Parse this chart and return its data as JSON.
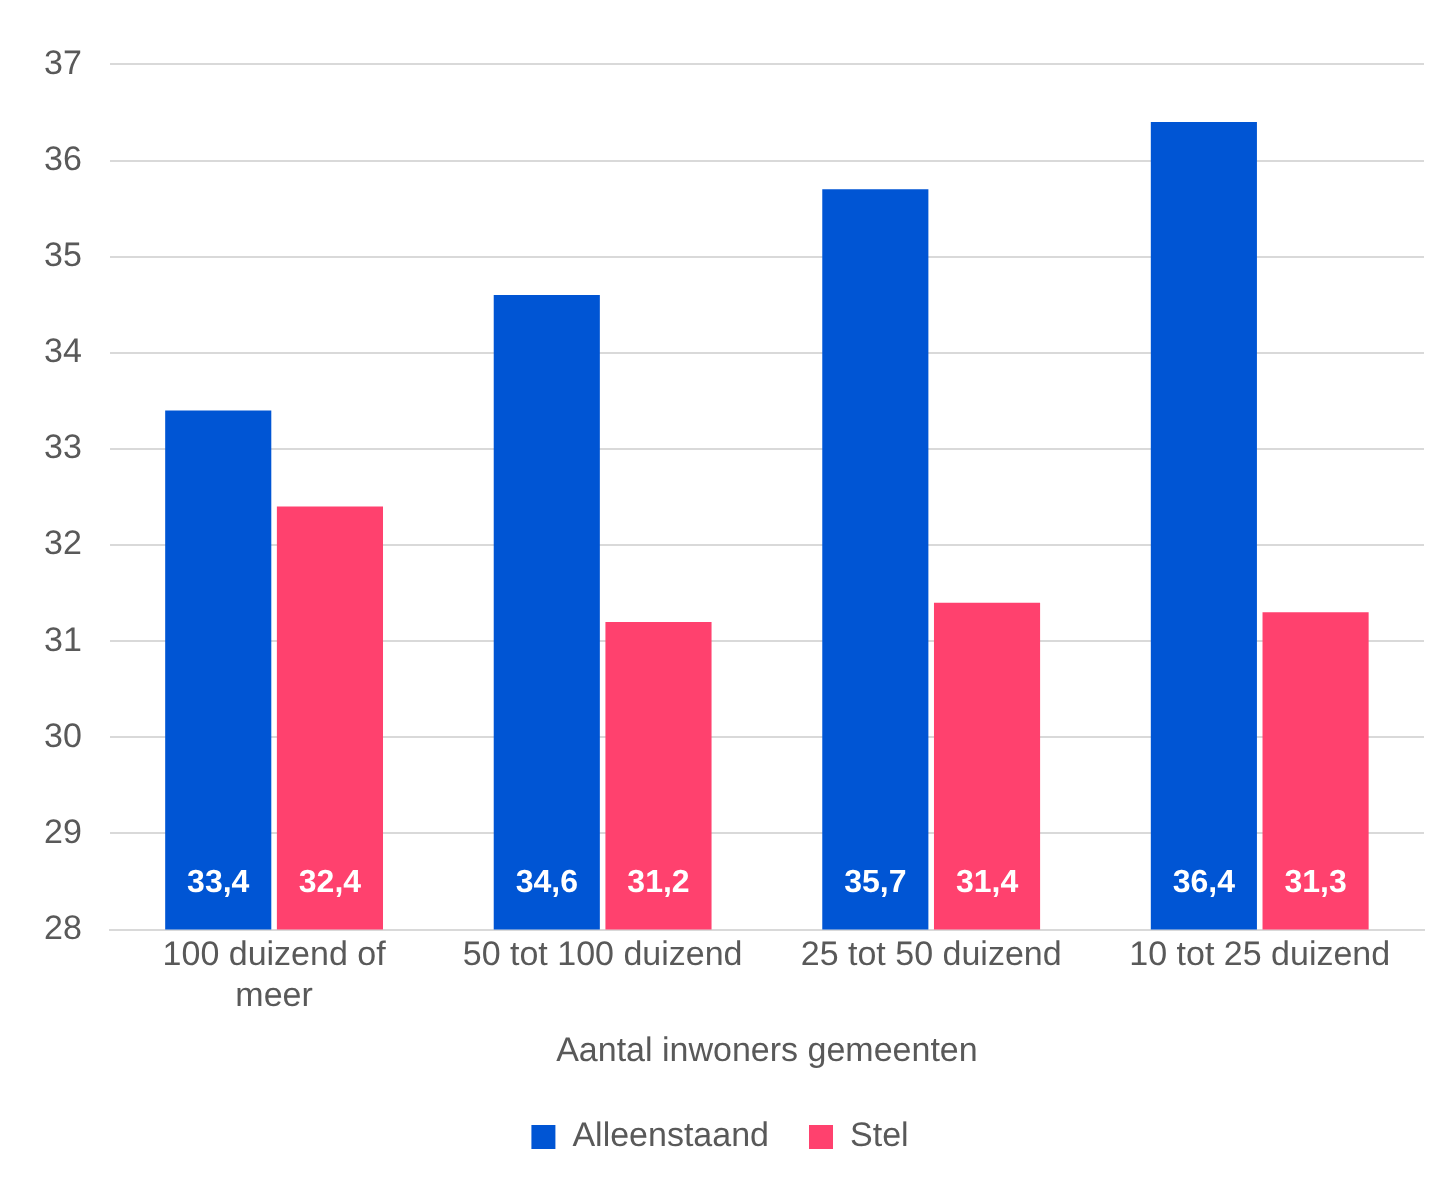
{
  "chart_data": {
    "type": "bar",
    "xlabel": "Aantal inwoners gemeenten",
    "categories": [
      "100 duizend of meer",
      "50 tot 100 duizend",
      "25 tot 50 duizend",
      "10 tot 25 duizend"
    ],
    "series": [
      {
        "name": "Alleenstaand",
        "color": "#0055d4",
        "values": [
          33.4,
          34.6,
          35.7,
          36.4
        ],
        "value_labels": [
          "33,4",
          "34,6",
          "35,7",
          "36,4"
        ]
      },
      {
        "name": "Stel",
        "color": "#ff416e",
        "values": [
          32.4,
          31.2,
          31.4,
          31.3
        ],
        "value_labels": [
          "32,4",
          "31,2",
          "31,4",
          "31,3"
        ]
      }
    ],
    "ylim": [
      28,
      37
    ],
    "yticks": [
      28,
      29,
      30,
      31,
      32,
      33,
      34,
      35,
      36,
      37
    ],
    "grid": "y",
    "legend": "bottom"
  }
}
